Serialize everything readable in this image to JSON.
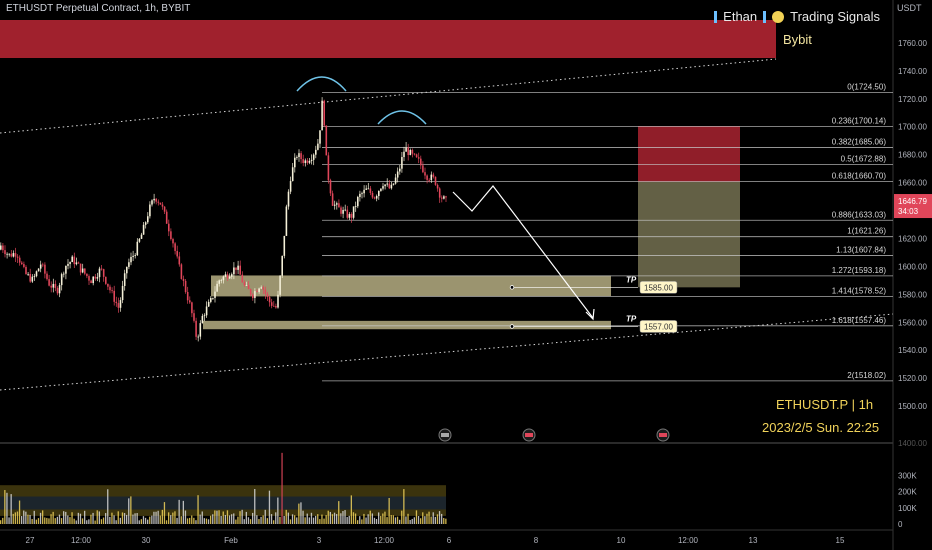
{
  "header": {
    "symbol_title": "ETHUSDT Perpetual Contract, 1h, BYBIT",
    "watermark_name": "Ethan",
    "watermark_label": "Trading Signals",
    "watermark_sub": "Bybit",
    "info_symbol": "ETHUSDT.P | 1h",
    "info_datetime": "2023/2/5 Sun. 22:25"
  },
  "colors": {
    "bull": "#f5f0d8",
    "bear": "#e0465a",
    "supply_zone": "#a0212d",
    "demand_zone": "#cfc594",
    "fib_line": "#c8c8c8",
    "channel": "#d8d8d8",
    "arc": "#6fc3e8",
    "volume_band": "#4a4010"
  },
  "chart_data": {
    "type": "candlestick",
    "y_axis_title": "USDT",
    "ylim": [
      1485,
      1785
    ],
    "y_ticks": [
      1500,
      1520,
      1540,
      1560,
      1580,
      1600,
      1620,
      1640,
      1660,
      1680,
      1700,
      1720,
      1740,
      1760
    ],
    "y_tick_labels": [
      "1500.00",
      "1520.00",
      "1540.00",
      "1560.00",
      "1580.00",
      "1600.00",
      "1620.00",
      "1640.00",
      "1660.00",
      "1680.00",
      "1700.00",
      "1720.00",
      "1740.00",
      "1760.00"
    ],
    "x_tick_labels": [
      "27",
      "12:00",
      "30",
      "Feb",
      "3",
      "12:00",
      "6",
      "8",
      "10",
      "12:00",
      "13",
      "15"
    ],
    "current_price": "1646.79",
    "current_countdown": "34:03",
    "fib_levels": [
      {
        "label": "0(1724.50)",
        "value": 1724.5
      },
      {
        "label": "0.236(1700.14)",
        "value": 1700.14
      },
      {
        "label": "0.382(1685.06)",
        "value": 1685.06
      },
      {
        "label": "0.5(1672.88)",
        "value": 1672.88
      },
      {
        "label": "0.618(1660.70)",
        "value": 1660.7
      },
      {
        "label": "0.886(1633.03)",
        "value": 1633.03
      },
      {
        "label": "1(1621.26)",
        "value": 1621.26
      },
      {
        "label": "1.13(1607.84)",
        "value": 1607.84
      },
      {
        "label": "1.272(1593.18)",
        "value": 1593.18
      },
      {
        "label": "1.414(1578.52)",
        "value": 1578.52
      },
      {
        "label": "1.618(1557.46)",
        "value": 1557.46
      },
      {
        "label": "2(1518.02)",
        "value": 1518.02
      }
    ],
    "targets": [
      {
        "tag": "TP",
        "price": "1585.00",
        "value": 1585.0
      },
      {
        "tag": "TP",
        "price": "1557.00",
        "value": 1557.0
      }
    ],
    "volume_axis": {
      "ylim": [
        0,
        470000
      ],
      "ticks": [
        0,
        100000,
        200000,
        300000
      ],
      "tick_labels": [
        "0",
        "100K",
        "200K",
        "300K"
      ],
      "hidden_tick_label": "1400.00"
    }
  }
}
